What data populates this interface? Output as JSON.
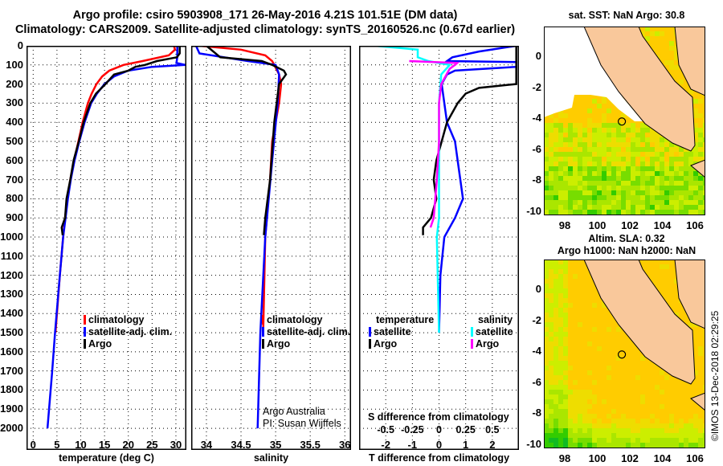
{
  "title_line1": "Argo profile: csiro 5903908_171 26-May-2016 4.21S 101.51E (DM data)",
  "title_line2": "Climatology: CARS2009. Satellite-adjusted climatology: synTS_20160526.nc (0.67d earlier)",
  "colors": {
    "climatology": "#ff0000",
    "satellite": "#0000ff",
    "argo": "#000000",
    "sal_satellite": "#00ffff",
    "sal_argo": "#ff00ff",
    "land": "#f9c89b"
  },
  "depth_ticks": [
    0,
    100,
    200,
    300,
    400,
    500,
    600,
    700,
    800,
    900,
    1000,
    1100,
    1200,
    1300,
    1400,
    1500,
    1600,
    1700,
    1800,
    1900,
    2000
  ],
  "chart_data": [
    {
      "type": "line",
      "name": "temperature",
      "xlabel": "temperature (deg C)",
      "ylabel": "depth",
      "xlim": [
        -1.4,
        32.2
      ],
      "ylim": [
        2113,
        0
      ],
      "xticks": [
        0,
        5,
        10,
        15,
        20,
        25,
        30
      ],
      "legend": [
        "climatology",
        "satellite-adj. clim.",
        "Argo"
      ],
      "series": [
        {
          "name": "climatology",
          "color": "#ff0000",
          "depth": [
            0,
            20,
            50,
            80,
            100,
            130,
            160,
            200,
            250,
            300,
            400,
            500,
            600,
            700,
            800,
            900,
            1000,
            1200,
            1500
          ],
          "value": [
            29.6,
            29.8,
            28.5,
            23,
            19,
            16,
            14.5,
            13.3,
            12.3,
            11.5,
            10.4,
            9.5,
            8.6,
            7.8,
            7.2,
            6.7,
            6.3,
            5.6,
            4.7
          ]
        },
        {
          "name": "satellite-adj. clim.",
          "color": "#0000ff",
          "depth": [
            0,
            60,
            90,
            100,
            110,
            130,
            160,
            200,
            250,
            300,
            400,
            500,
            600,
            700,
            800,
            900,
            1000,
            1200,
            1500,
            1700,
            2000
          ],
          "value": [
            30.3,
            30.3,
            30.1,
            32,
            25,
            20,
            17,
            15,
            13.4,
            12.2,
            10.8,
            9.7,
            8.7,
            7.9,
            7.3,
            6.8,
            6.3,
            5.6,
            4.6,
            4.0,
            3.0
          ]
        },
        {
          "name": "Argo",
          "color": "#000000",
          "depth": [
            0,
            40,
            60,
            80,
            100,
            110,
            130,
            150,
            200,
            250,
            300,
            400,
            500,
            600,
            700,
            800,
            900,
            950,
            990
          ],
          "value": [
            30.8,
            30.8,
            30.2,
            26,
            23.5,
            21.5,
            20,
            17,
            15.2,
            13.2,
            12.0,
            10.6,
            9.6,
            8.5,
            7.8,
            7.0,
            6.7,
            6.0,
            6.2
          ]
        }
      ]
    },
    {
      "type": "line",
      "name": "salinity",
      "xlabel": "salinity",
      "xlim": [
        33.78,
        36.09
      ],
      "ylim": [
        2113,
        0
      ],
      "xticks": [
        34,
        34.5,
        35,
        35.5,
        36
      ],
      "legend": [
        "climatology",
        "satellite-adj. clim.",
        "Argo"
      ],
      "credit": [
        "Argo Australia",
        "PI: Susan Wijffels"
      ],
      "series": [
        {
          "name": "climatology",
          "color": "#ff0000",
          "depth": [
            0,
            20,
            50,
            80,
            100,
            150,
            200,
            300,
            400,
            500,
            700,
            1000,
            1500
          ],
          "value": [
            33.9,
            34.5,
            34.85,
            34.95,
            34.98,
            35.05,
            35.08,
            35.05,
            35.0,
            34.95,
            34.92,
            34.85,
            34.82
          ]
        },
        {
          "name": "satellite-adj. clim.",
          "color": "#0000ff",
          "depth": [
            0,
            40,
            80,
            100,
            150,
            300,
            600,
            1000,
            1500,
            2000
          ],
          "value": [
            33.85,
            33.9,
            34.6,
            35.0,
            35.05,
            35.03,
            34.95,
            34.85,
            34.78,
            34.74
          ]
        },
        {
          "name": "Argo",
          "color": "#000000",
          "depth": [
            0,
            60,
            80,
            100,
            130,
            150,
            200,
            400,
            700,
            900,
            990
          ],
          "value": [
            34.0,
            34.2,
            34.8,
            34.95,
            35.12,
            35.15,
            35.05,
            34.98,
            34.92,
            34.85,
            34.83
          ]
        }
      ]
    },
    {
      "type": "line",
      "name": "difference",
      "xlabel": "T difference from climatology",
      "x2label": "S difference from climatology",
      "xlim": [
        -3,
        3
      ],
      "x2lim": [
        -0.75,
        0.75
      ],
      "ylim": [
        2113,
        0
      ],
      "xticks": [
        -2,
        -1,
        0,
        1,
        2
      ],
      "x2ticks": [
        -0.5,
        -0.25,
        0,
        0.25,
        0.5
      ],
      "x2ticklabels": [
        "-0.5",
        "-0.25",
        "0",
        "0.25",
        "0.5"
      ],
      "legend_t": {
        "heading": "temperature",
        "items": [
          "satellite",
          "Argo"
        ]
      },
      "legend_s": {
        "heading": "salinity",
        "items": [
          "satellite",
          "Argo"
        ]
      },
      "series": [
        {
          "name": "T satellite",
          "axis": "t",
          "color": "#0000ff",
          "depth": [
            0,
            30,
            60,
            80,
            85,
            110,
            130,
            150,
            200,
            300,
            400,
            500,
            600,
            700,
            800,
            900,
            1000,
            1200,
            1500
          ],
          "value": [
            2.9,
            1.5,
            0.5,
            0.3,
            2.9,
            2.9,
            0.6,
            0.3,
            0.1,
            0.2,
            0.3,
            0.6,
            0.7,
            0.8,
            0.9,
            0.6,
            0.2,
            0.05,
            0
          ]
        },
        {
          "name": "T Argo",
          "axis": "t",
          "color": "#000000",
          "depth": [
            0,
            100,
            200,
            220,
            250,
            300,
            400,
            500,
            600,
            700,
            800,
            900,
            950,
            990
          ],
          "value": [
            2.9,
            2.9,
            2.9,
            1.5,
            1.0,
            0.7,
            0.3,
            0.1,
            -0.1,
            -0.2,
            -0.1,
            -0.3,
            -0.6,
            -0.6
          ]
        },
        {
          "name": "S satellite",
          "axis": "s",
          "color": "#00ffff",
          "depth": [
            0,
            20,
            60,
            80,
            100,
            150,
            300,
            600,
            900,
            1000,
            1500
          ],
          "value": [
            -0.6,
            -0.2,
            -0.2,
            -0.1,
            0.1,
            0.02,
            0.0,
            0.0,
            0.0,
            -0.02,
            0
          ]
        },
        {
          "name": "S Argo",
          "axis": "s",
          "color": "#ff00ff",
          "depth": [
            80,
            90,
            100,
            120,
            200,
            300,
            500,
            700,
            900,
            950
          ],
          "value": [
            -0.28,
            0.17,
            0.15,
            0.1,
            0.02,
            0.0,
            0.0,
            -0.02,
            -0.05,
            -0.08
          ]
        }
      ]
    }
  ],
  "maps": [
    {
      "title": "sat. SST: NaN Argo: 30.8",
      "subtitle": "",
      "lat_ticks": [
        "0",
        "-2",
        "-4",
        "-6",
        "-8",
        "-10"
      ],
      "lon_ticks": [
        "98",
        "100",
        "102",
        "104",
        "106"
      ],
      "argo_position": {
        "lat": -4.21,
        "lon": 101.51
      }
    },
    {
      "title": "Altim. SLA: 0.32",
      "subtitle": "Argo h1000: NaN h2000: NaN",
      "lat_ticks": [
        "0",
        "-2",
        "-4",
        "-6",
        "-8",
        "-10"
      ],
      "lon_ticks": [
        "98",
        "100",
        "102",
        "104",
        "106"
      ],
      "argo_position": {
        "lat": -4.21,
        "lon": 101.51
      }
    }
  ],
  "footer": "©IMOS 13-Dec-2018 02:29:25"
}
